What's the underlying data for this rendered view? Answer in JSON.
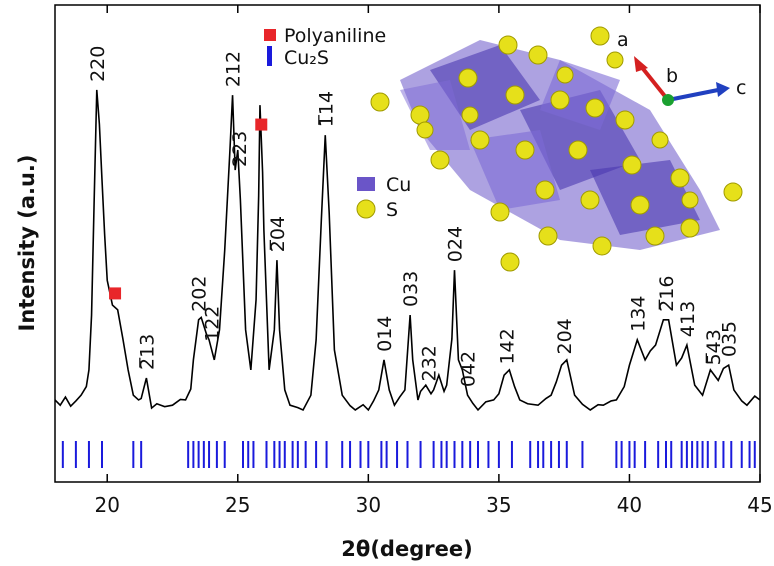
{
  "chart_data": {
    "type": "line",
    "xlabel": "2θ(degree)",
    "ylabel": "Intensity (a.u.)",
    "xlim": [
      18,
      45
    ],
    "xticks": [
      20,
      25,
      30,
      35,
      40,
      45
    ],
    "ylim": [
      0,
      100
    ],
    "legend": "top",
    "series": [
      {
        "color": "#000000",
        "x": [
          18.0,
          18.2,
          18.4,
          18.6,
          18.8,
          19.0,
          19.2,
          19.3,
          19.4,
          19.5,
          19.6,
          19.7,
          19.8,
          19.9,
          20.0,
          20.2,
          20.4,
          20.6,
          20.8,
          21.0,
          21.2,
          21.3,
          21.5,
          21.7,
          21.9,
          22.2,
          22.5,
          22.8,
          23.0,
          23.2,
          23.3,
          23.5,
          23.6,
          23.8,
          23.9,
          24.1,
          24.3,
          24.5,
          24.7,
          24.8,
          24.9,
          25.0,
          25.1,
          25.3,
          25.5,
          25.7,
          25.8,
          25.85,
          25.95,
          26.0,
          26.2,
          26.4,
          26.5,
          26.6,
          26.8,
          27.0,
          27.3,
          27.5,
          27.8,
          28.0,
          28.2,
          28.35,
          28.5,
          28.7,
          29.0,
          29.3,
          29.5,
          29.8,
          30.0,
          30.2,
          30.4,
          30.6,
          30.8,
          31.0,
          31.2,
          31.4,
          31.6,
          31.7,
          31.9,
          32.0,
          32.2,
          32.4,
          32.5,
          32.7,
          32.9,
          33.0,
          33.2,
          33.3,
          33.45,
          33.6,
          33.8,
          34.0,
          34.2,
          34.5,
          34.8,
          35.0,
          35.2,
          35.4,
          35.6,
          35.8,
          36.1,
          36.5,
          36.8,
          37.0,
          37.2,
          37.4,
          37.6,
          37.9,
          38.2,
          38.5,
          38.8,
          39.0,
          39.3,
          39.5,
          39.8,
          40.0,
          40.3,
          40.6,
          40.8,
          41.0,
          41.3,
          41.5,
          41.8,
          42.0,
          42.2,
          42.5,
          42.8,
          43.1,
          43.4,
          43.6,
          43.8,
          44.0,
          44.3,
          44.5,
          44.8,
          45.0
        ],
        "values": [
          17.2,
          16.1,
          17.8,
          15.9,
          17.0,
          18.2,
          20.0,
          23.5,
          35.0,
          59.1,
          82.2,
          75.0,
          63.3,
          52.0,
          42.3,
          37.1,
          36.1,
          30.0,
          23.5,
          18.2,
          17.2,
          17.5,
          21.8,
          15.5,
          16.4,
          15.8,
          16.1,
          17.3,
          17.2,
          19.5,
          25.6,
          34.0,
          34.5,
          31.0,
          29.8,
          25.6,
          31.9,
          48.6,
          69.6,
          81.1,
          65.4,
          69.6,
          59.1,
          31.9,
          23.5,
          38.2,
          60.0,
          79.0,
          65.0,
          52.8,
          23.5,
          31.9,
          46.5,
          31.9,
          19.3,
          16.1,
          15.6,
          15.1,
          18.2,
          29.8,
          54.9,
          72.7,
          56.5,
          27.7,
          18.2,
          16.0,
          15.1,
          16.2,
          15.1,
          17.0,
          19.3,
          25.6,
          19.3,
          16.1,
          17.8,
          19.3,
          35.0,
          25.6,
          17.2,
          19.0,
          20.3,
          18.5,
          19.3,
          22.4,
          19.0,
          20.3,
          30.0,
          44.4,
          25.6,
          23.5,
          18.2,
          16.5,
          15.1,
          16.8,
          17.2,
          18.5,
          22.4,
          23.5,
          20.0,
          17.2,
          16.4,
          16.1,
          17.5,
          18.2,
          21.0,
          24.5,
          25.6,
          18.2,
          16.3,
          15.1,
          16.2,
          16.1,
          17.0,
          17.2,
          20.0,
          24.5,
          29.8,
          25.6,
          27.5,
          28.7,
          34.0,
          34.0,
          24.5,
          26.0,
          28.7,
          20.3,
          18.2,
          23.5,
          21.3,
          23.8,
          24.5,
          19.3,
          17.0,
          16.1,
          18.0,
          17.2
        ]
      }
    ],
    "markers": {
      "name": "Polyaniline",
      "color": "#e8262a",
      "x": [
        20.3,
        25.9
      ]
    },
    "reference": {
      "name": "Cu₂S",
      "color": "#1a1adc",
      "x": [
        18.3,
        18.8,
        19.3,
        19.8,
        21.0,
        21.3,
        23.1,
        23.3,
        23.5,
        23.7,
        23.9,
        24.2,
        24.5,
        25.2,
        25.4,
        25.6,
        26.1,
        26.4,
        26.6,
        26.8,
        27.1,
        27.3,
        27.6,
        28.0,
        28.4,
        29.0,
        29.3,
        29.7,
        30.0,
        30.5,
        30.7,
        31.1,
        31.5,
        32.0,
        32.5,
        32.8,
        33.0,
        33.3,
        33.6,
        33.9,
        34.2,
        34.6,
        35.0,
        35.5,
        36.2,
        36.5,
        36.7,
        37.0,
        37.3,
        37.6,
        38.2,
        39.5,
        39.7,
        40.0,
        40.2,
        40.6,
        41.1,
        41.4,
        41.6,
        42.0,
        42.2,
        42.4,
        42.6,
        42.8,
        43.0,
        43.3,
        43.6,
        43.9,
        44.3,
        44.6,
        44.8
      ]
    },
    "peak_labels": [
      {
        "label": "220",
        "x": 19.6
      },
      {
        "label": "2̅13",
        "x": 21.5
      },
      {
        "label": "202",
        "x": 23.5
      },
      {
        "label": "122",
        "x": 24.0
      },
      {
        "label": "212",
        "x": 24.8
      },
      {
        "label": "223",
        "x": 25.05
      },
      {
        "label": "2̅04",
        "x": 26.5
      },
      {
        "label": "1̅14",
        "x": 28.35
      },
      {
        "label": "014",
        "x": 30.6
      },
      {
        "label": "033",
        "x": 31.6
      },
      {
        "label": "232",
        "x": 32.3
      },
      {
        "label": "024",
        "x": 33.3
      },
      {
        "label": "042",
        "x": 33.8
      },
      {
        "label": "142",
        "x": 35.3
      },
      {
        "label": "204",
        "x": 37.5
      },
      {
        "label": "134",
        "x": 40.3
      },
      {
        "label": "2̅16",
        "x": 41.4
      },
      {
        "label": "413",
        "x": 42.2
      },
      {
        "label": "5̅43",
        "x": 43.2
      },
      {
        "label": "035",
        "x": 43.8
      }
    ],
    "inset": {
      "axes": [
        "a",
        "b",
        "c"
      ],
      "legend": [
        "Cu",
        "S"
      ]
    }
  }
}
